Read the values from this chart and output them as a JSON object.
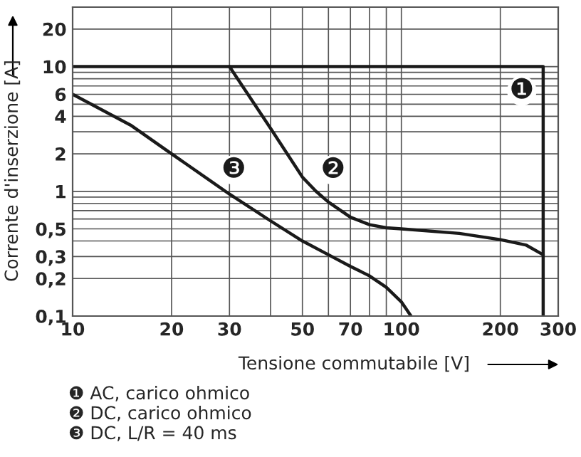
{
  "chart_data": {
    "type": "line",
    "xlabel": "Tensione commutabile [V]",
    "ylabel": "Corrente d'inserzione [A]",
    "log": "xy",
    "series": [
      {
        "name": "❶",
        "color": "#1a1a1a",
        "x": [
          10,
          270,
          270
        ],
        "values": [
          10,
          10,
          0.1
        ]
      },
      {
        "name": "❷",
        "color": "#1a1a1a",
        "x": [
          30,
          40,
          50,
          55,
          60,
          70,
          80,
          90,
          100,
          150,
          200,
          240,
          270
        ],
        "values": [
          10,
          3.2,
          1.3,
          1.0,
          0.82,
          0.62,
          0.54,
          0.51,
          0.5,
          0.46,
          0.41,
          0.37,
          0.31
        ]
      },
      {
        "name": "❸",
        "color": "#1a1a1a",
        "x": [
          10,
          15,
          20,
          30,
          40,
          50,
          60,
          70,
          80,
          90,
          100,
          107
        ],
        "values": [
          6,
          3.4,
          2.0,
          0.95,
          0.58,
          0.4,
          0.31,
          0.25,
          0.21,
          0.17,
          0.13,
          0.1
        ]
      }
    ],
    "xlim": [
      10,
      300
    ],
    "ylim": [
      0.1,
      30
    ],
    "xticks": [
      10,
      20,
      30,
      {
        "value": 40,
        "label": null
      },
      50,
      {
        "value": 60,
        "label": null
      },
      70,
      {
        "value": 80,
        "label": null
      },
      {
        "value": 90,
        "label": null
      },
      100,
      200,
      300
    ],
    "yticks": [
      {
        "value": 0.1,
        "label": "0,1"
      },
      {
        "value": 0.2,
        "label": "0,2"
      },
      {
        "value": 0.3,
        "label": "0,3"
      },
      {
        "value": 0.4,
        "label": null
      },
      {
        "value": 0.5,
        "label": "0,5"
      },
      {
        "value": 0.6,
        "label": null
      },
      {
        "value": 0.7,
        "label": null
      },
      {
        "value": 0.8,
        "label": null
      },
      {
        "value": 0.9,
        "label": null
      },
      1,
      2,
      {
        "value": 3,
        "label": null
      },
      4,
      {
        "value": 5,
        "label": null
      },
      6,
      {
        "value": 7,
        "label": null
      },
      {
        "value": 8,
        "label": null
      },
      {
        "value": 9,
        "label": null
      },
      10,
      20
    ],
    "grid": true,
    "marker": "none",
    "line_style": "solid",
    "legend": false,
    "annotations": [
      "❶ AC, carico ohmico",
      "❷ DC, carico ohmico",
      "❸ DC, L/R = 40 ms"
    ]
  }
}
